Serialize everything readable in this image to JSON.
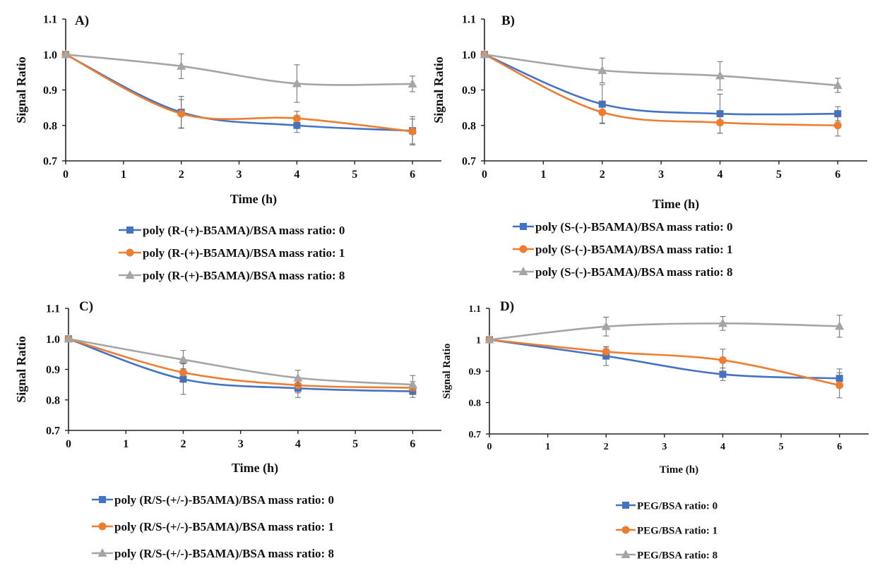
{
  "chart_data": [
    {
      "panel": "A)",
      "type": "line",
      "xlabel": "Time (h)",
      "ylabel": "Signal Ratio",
      "xlim": [
        0,
        6.5
      ],
      "ylim": [
        0.7,
        1.1
      ],
      "xticks": [
        "0",
        "1",
        "2",
        "3",
        "4",
        "5",
        "6"
      ],
      "yticks": [
        "0.7",
        "0.8",
        "0.9",
        "1.0",
        "1.1"
      ],
      "x": [
        0,
        2,
        4,
        6
      ],
      "legend_position": "bottom",
      "series": [
        {
          "name": "poly (R-(+)-B5AMA)/BSA mass ratio: 0",
          "color": "#4472c4",
          "marker": "square",
          "values": [
            1.0,
            0.837,
            0.8,
            0.785
          ],
          "errors": [
            0,
            0.045,
            0.02,
            0.04
          ]
        },
        {
          "name": "poly (R-(+)-B5AMA)/BSA mass ratio: 1",
          "color": "#ed7d31",
          "marker": "circle",
          "values": [
            1.0,
            0.833,
            0.82,
            0.783
          ],
          "errors": [
            0,
            0.04,
            0.02,
            0.035
          ]
        },
        {
          "name": "poly (R-(+)-B5AMA)/BSA mass ratio: 8",
          "color": "#a5a5a5",
          "marker": "triangle",
          "values": [
            1.0,
            0.967,
            0.918,
            0.917
          ],
          "errors": [
            0,
            0.035,
            0.053,
            0.022
          ]
        }
      ]
    },
    {
      "panel": "B)",
      "type": "line",
      "xlabel": "Time (h)",
      "ylabel": "Signal Ratio",
      "xlim": [
        0,
        6.5
      ],
      "ylim": [
        0.7,
        1.1
      ],
      "xticks": [
        "0",
        "1",
        "2",
        "3",
        "4",
        "5",
        "6"
      ],
      "yticks": [
        "0.7",
        "0.8",
        "0.9",
        "1.0",
        "1.1"
      ],
      "x": [
        0,
        2,
        4,
        6
      ],
      "legend_position": "bottom",
      "series": [
        {
          "name": "poly (S-(-)-B5AMA)/BSA mass ratio: 0",
          "color": "#4472c4",
          "marker": "square",
          "values": [
            1.0,
            0.86,
            0.833,
            0.833
          ],
          "errors": [
            0,
            0.055,
            0.055,
            0.02
          ]
        },
        {
          "name": "poly (S-(-)-B5AMA)/BSA mass ratio: 1",
          "color": "#ed7d31",
          "marker": "circle",
          "values": [
            1.0,
            0.837,
            0.808,
            0.8
          ],
          "errors": [
            0,
            0.03,
            0.03,
            0.03
          ]
        },
        {
          "name": "poly (S-(-)-B5AMA)/BSA mass ratio: 8",
          "color": "#a5a5a5",
          "marker": "triangle",
          "values": [
            1.0,
            0.955,
            0.94,
            0.913
          ],
          "errors": [
            0,
            0.035,
            0.04,
            0.02
          ]
        }
      ]
    },
    {
      "panel": "C)",
      "type": "line",
      "xlabel": "Time (h)",
      "ylabel": "Signal Ratio",
      "xlim": [
        0,
        6.5
      ],
      "ylim": [
        0.7,
        1.1
      ],
      "xticks": [
        "0",
        "1",
        "2",
        "3",
        "4",
        "5",
        "6"
      ],
      "yticks": [
        "0.7",
        "0.8",
        "0.9",
        "1.0",
        "1.1"
      ],
      "x": [
        0,
        2,
        4,
        6
      ],
      "legend_position": "bottom",
      "series": [
        {
          "name": "poly (R/S-(+/-)-B5AMA)/BSA mass ratio: 0",
          "color": "#4472c4",
          "marker": "square",
          "values": [
            1.0,
            0.868,
            0.838,
            0.828
          ],
          "errors": [
            0,
            0.05,
            0.03,
            0.02
          ]
        },
        {
          "name": "poly (R/S-(+/-)-B5AMA)/BSA mass ratio: 1",
          "color": "#ed7d31",
          "marker": "circle",
          "values": [
            1.0,
            0.89,
            0.848,
            0.84
          ],
          "errors": [
            0,
            0.03,
            0.025,
            0.02
          ]
        },
        {
          "name": "poly (R/S-(+/-)-B5AMA)/BSA mass ratio: 8",
          "color": "#a5a5a5",
          "marker": "triangle",
          "values": [
            1.0,
            0.932,
            0.872,
            0.85
          ],
          "errors": [
            0,
            0.03,
            0.025,
            0.03
          ]
        }
      ]
    },
    {
      "panel": "D)",
      "type": "line",
      "xlabel": "Time (h)",
      "ylabel": "Signal Ratio",
      "xlim": [
        0,
        6.5
      ],
      "ylim": [
        0.7,
        1.1
      ],
      "xticks": [
        "0",
        "1",
        "2",
        "3",
        "4",
        "5",
        "6"
      ],
      "yticks": [
        "0.7",
        "0.8",
        "0.9",
        "1",
        "1.1"
      ],
      "x": [
        0,
        2,
        4,
        6
      ],
      "legend_position": "bottom",
      "series": [
        {
          "name": "PEG/BSA ratio: 0",
          "color": "#4472c4",
          "marker": "square",
          "values": [
            1.0,
            0.948,
            0.89,
            0.877
          ],
          "errors": [
            0,
            0.03,
            0.02,
            0.03
          ]
        },
        {
          "name": "PEG/BSA ratio: 1",
          "color": "#ed7d31",
          "marker": "circle",
          "values": [
            1.0,
            0.962,
            0.935,
            0.855
          ],
          "errors": [
            0,
            0.015,
            0.035,
            0.04
          ]
        },
        {
          "name": "PEG/BSA ratio: 8",
          "color": "#a5a5a5",
          "marker": "triangle",
          "values": [
            1.0,
            1.042,
            1.052,
            1.043
          ],
          "errors": [
            0,
            0.03,
            0.022,
            0.035
          ]
        }
      ]
    }
  ]
}
